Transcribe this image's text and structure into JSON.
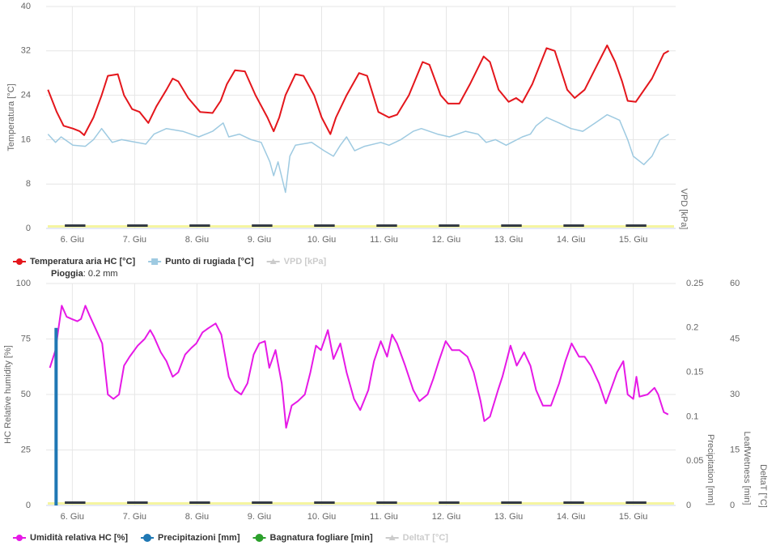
{
  "chart_data": [
    {
      "type": "line",
      "ylabel": "Temperatura [°C]",
      "y2label": "VPD [kPa]",
      "xlim": [
        5.58,
        15.68
      ],
      "xticks": [
        {
          "value": 6,
          "label": "6. Giu"
        },
        {
          "value": 7,
          "label": "7. Giu"
        },
        {
          "value": 8,
          "label": "8. Giu"
        },
        {
          "value": 9,
          "label": "9. Giu"
        },
        {
          "value": 10,
          "label": "10. Giu"
        },
        {
          "value": 11,
          "label": "11. Giu"
        },
        {
          "value": 12,
          "label": "12. Giu"
        },
        {
          "value": 13,
          "label": "13. Giu"
        },
        {
          "value": 14,
          "label": "14. Giu"
        },
        {
          "value": 15,
          "label": "15. Giu"
        }
      ],
      "ylim": [
        0,
        40
      ],
      "yticks": [
        0,
        8,
        16,
        24,
        32,
        40
      ],
      "grid": true,
      "series": [
        {
          "name": "Temperatura aria HC [°C]",
          "color": "#e4161c",
          "x": [
            5.61,
            5.75,
            5.86,
            6.01,
            6.12,
            6.19,
            6.34,
            6.47,
            6.57,
            6.73,
            6.83,
            6.96,
            7.08,
            7.22,
            7.35,
            7.51,
            7.61,
            7.7,
            7.86,
            8.05,
            8.25,
            8.38,
            8.48,
            8.61,
            8.77,
            8.94,
            9.13,
            9.23,
            9.32,
            9.42,
            9.58,
            9.71,
            9.88,
            10.0,
            10.14,
            10.23,
            10.4,
            10.6,
            10.73,
            10.91,
            11.08,
            11.21,
            11.4,
            11.62,
            11.73,
            11.91,
            12.03,
            12.21,
            12.38,
            12.6,
            12.7,
            12.84,
            13.0,
            13.12,
            13.22,
            13.38,
            13.61,
            13.74,
            13.94,
            14.06,
            14.22,
            14.4,
            14.58,
            14.71,
            14.82,
            14.91,
            15.04,
            15.3,
            15.49,
            15.57
          ],
          "values": [
            25,
            21,
            18.5,
            18,
            17.5,
            16.8,
            20,
            24,
            27.5,
            27.8,
            24,
            21.5,
            21,
            19,
            22,
            25,
            27,
            26.5,
            23.5,
            21,
            20.8,
            23,
            26,
            28.5,
            28.3,
            24,
            20,
            17.5,
            20,
            24,
            27.8,
            27.5,
            24,
            20,
            17,
            20,
            24,
            28,
            27.5,
            21,
            20,
            20.5,
            24,
            30,
            29.5,
            24,
            22.5,
            22.5,
            26,
            31,
            30,
            25,
            22.8,
            23.5,
            22.7,
            26,
            32.5,
            32,
            25,
            23.5,
            25,
            29,
            33,
            30,
            26.5,
            23,
            22.8,
            27,
            31.5,
            32
          ]
        },
        {
          "name": "Punto di rugiada [°C]",
          "color": "#9ecae1",
          "x": [
            5.61,
            5.73,
            5.82,
            6.01,
            6.21,
            6.34,
            6.47,
            6.64,
            6.79,
            7.18,
            7.31,
            7.51,
            7.77,
            8.03,
            8.25,
            8.42,
            8.51,
            8.68,
            8.87,
            9.03,
            9.17,
            9.23,
            9.3,
            9.42,
            9.49,
            9.58,
            9.84,
            10.04,
            10.19,
            10.3,
            10.4,
            10.53,
            10.69,
            10.95,
            11.08,
            11.27,
            11.47,
            11.6,
            11.86,
            12.05,
            12.31,
            12.51,
            12.64,
            12.79,
            12.96,
            13.22,
            13.35,
            13.44,
            13.61,
            13.81,
            14.0,
            14.19,
            14.39,
            14.58,
            14.78,
            14.91,
            15.0,
            15.17,
            15.3,
            15.43,
            15.57
          ],
          "values": [
            17,
            15.5,
            16.5,
            15,
            14.8,
            16,
            18,
            15.5,
            16,
            15.2,
            17,
            18,
            17.5,
            16.5,
            17.5,
            19,
            16.5,
            17,
            16,
            15.5,
            12,
            9.5,
            12,
            6.5,
            13,
            15,
            15.5,
            14,
            13,
            15,
            16.5,
            14,
            14.8,
            15.5,
            15,
            16,
            17.5,
            18,
            17,
            16.5,
            17.5,
            17,
            15.5,
            16,
            15,
            16.5,
            17,
            18.5,
            20,
            19,
            18,
            17.5,
            19,
            20.5,
            19.5,
            16,
            13,
            11.5,
            13,
            16,
            17
          ]
        },
        {
          "name": "VPD [kPa]",
          "color": "#cccccc",
          "hidden": true
        }
      ]
    },
    {
      "type": "line",
      "ylabel": "HC Relative humidity [%]",
      "y2label": "Precipitation [mm]",
      "y3label": "LeafWetness [min]",
      "y4label": "DeltaT [°C]",
      "annotation": {
        "label": "Pioggia",
        "text": ": 0.2 mm"
      },
      "xlim": [
        5.58,
        15.68
      ],
      "xticks": [
        {
          "value": 6,
          "label": "6. Giu"
        },
        {
          "value": 7,
          "label": "7. Giu"
        },
        {
          "value": 8,
          "label": "8. Giu"
        },
        {
          "value": 9,
          "label": "9. Giu"
        },
        {
          "value": 10,
          "label": "10. Giu"
        },
        {
          "value": 11,
          "label": "11. Giu"
        },
        {
          "value": 12,
          "label": "12. Giu"
        },
        {
          "value": 13,
          "label": "13. Giu"
        },
        {
          "value": 14,
          "label": "14. Giu"
        },
        {
          "value": 15,
          "label": "15. Giu"
        }
      ],
      "ylim": [
        0,
        100
      ],
      "yticks": [
        0,
        25,
        50,
        75,
        100
      ],
      "y2lim": [
        0,
        0.25
      ],
      "y2ticks": [
        0,
        0.05,
        0.1,
        0.15,
        0.2,
        0.25
      ],
      "y3lim": [
        0,
        60
      ],
      "y3ticks": [
        0,
        15,
        30,
        45,
        60
      ],
      "grid": true,
      "series": [
        {
          "name": "Umidità relativa HC [%]",
          "color": "#e619e6",
          "x": [
            5.64,
            5.73,
            5.78,
            5.83,
            5.91,
            5.99,
            6.08,
            6.14,
            6.21,
            6.27,
            6.4,
            6.48,
            6.57,
            6.66,
            6.75,
            6.83,
            6.92,
            7.05,
            7.16,
            7.25,
            7.31,
            7.42,
            7.51,
            7.61,
            7.7,
            7.81,
            7.91,
            7.99,
            8.09,
            8.19,
            8.3,
            8.39,
            8.51,
            8.61,
            8.71,
            8.81,
            8.91,
            9.0,
            9.09,
            9.16,
            9.26,
            9.36,
            9.43,
            9.52,
            9.62,
            9.73,
            9.82,
            9.91,
            9.99,
            10.1,
            10.19,
            10.3,
            10.4,
            10.52,
            10.62,
            10.75,
            10.84,
            10.95,
            11.05,
            11.13,
            11.21,
            11.34,
            11.47,
            11.57,
            11.7,
            11.79,
            11.88,
            11.99,
            12.09,
            12.21,
            12.34,
            12.44,
            12.55,
            12.61,
            12.7,
            12.83,
            12.9,
            13.03,
            13.13,
            13.25,
            13.35,
            13.44,
            13.55,
            13.68,
            13.81,
            13.91,
            14.01,
            14.13,
            14.22,
            14.32,
            14.45,
            14.56,
            14.65,
            14.74,
            14.84,
            14.91,
            15.0,
            15.05,
            15.1,
            15.23,
            15.34,
            15.4,
            15.49,
            15.56
          ],
          "values": [
            62,
            70,
            80,
            90,
            85,
            84,
            83,
            84,
            90,
            86,
            78,
            73,
            50,
            48,
            50,
            63,
            67,
            72,
            75,
            79,
            76,
            69,
            65,
            58,
            60,
            68,
            71,
            73,
            78,
            80,
            82,
            77,
            58,
            52,
            50,
            55,
            68,
            73,
            74,
            62,
            70,
            55,
            35,
            45,
            47,
            50,
            60,
            72,
            70,
            79,
            66,
            73,
            60,
            48,
            43,
            52,
            65,
            74,
            67,
            77,
            73,
            63,
            52,
            47,
            50,
            57,
            65,
            74,
            70,
            70,
            67,
            60,
            47,
            38,
            40,
            52,
            58,
            72,
            63,
            69,
            63,
            52,
            45,
            45,
            55,
            65,
            73,
            67,
            67,
            63,
            55,
            46,
            53,
            60,
            65,
            50,
            48,
            58,
            49,
            50,
            53,
            50,
            42,
            41
          ]
        },
        {
          "name": "Precipitazioni [mm]",
          "color": "#1f78b4",
          "kind": "bar",
          "axis": "y2",
          "x": [
            5.74
          ],
          "values": [
            0.2
          ]
        },
        {
          "name": "Bagnatura fogliare [min]",
          "color": "#2ca02c",
          "axis": "y3"
        },
        {
          "name": "DeltaT [°C]",
          "color": "#cccccc",
          "hidden": true
        }
      ]
    }
  ]
}
